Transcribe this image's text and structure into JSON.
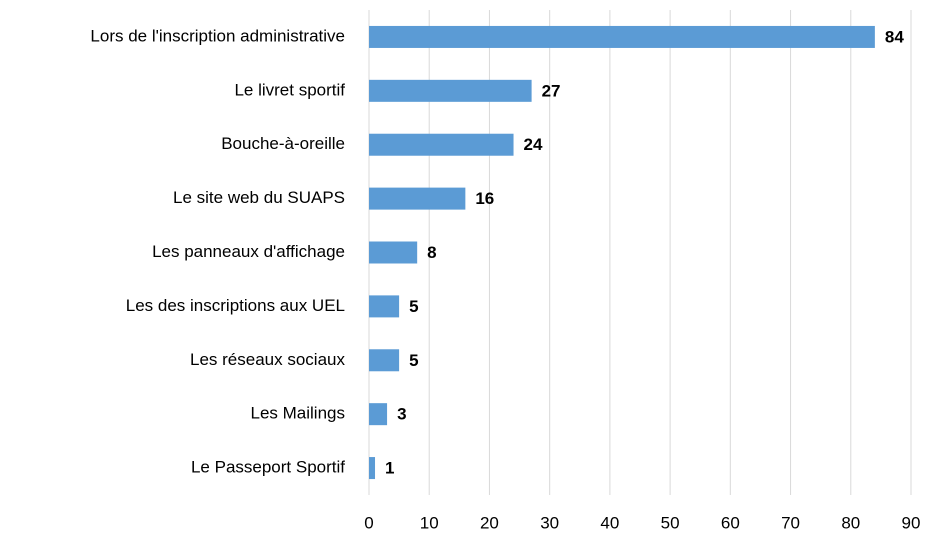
{
  "chart_data": {
    "type": "bar",
    "orientation": "horizontal",
    "categories": [
      "Lors de l'inscription administrative",
      "Le livret sportif",
      "Bouche-à-oreille",
      "Le site web du SUAPS",
      "Les panneaux d'affichage",
      "Les des inscriptions aux UEL",
      "Les réseaux sociaux",
      "Les Mailings",
      "Le Passeport Sportif"
    ],
    "values": [
      84,
      27,
      24,
      16,
      8,
      5,
      5,
      3,
      1
    ],
    "color": "#5b9bd5",
    "xlim": [
      0,
      90
    ],
    "xticks": [
      0,
      10,
      20,
      30,
      40,
      50,
      60,
      70,
      80,
      90
    ],
    "grid": true
  }
}
